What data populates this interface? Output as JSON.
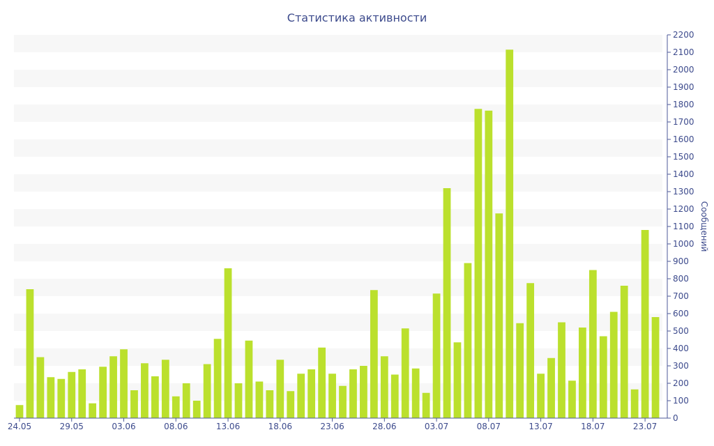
{
  "chart_data": {
    "type": "bar",
    "title": "Статистика активности",
    "xlabel": "",
    "ylabel": "Сообщений",
    "ylim": [
      0,
      2200
    ],
    "y_ticks": [
      0,
      100,
      200,
      300,
      400,
      500,
      600,
      700,
      800,
      900,
      1000,
      1100,
      1200,
      1300,
      1400,
      1500,
      1600,
      1700,
      1800,
      1900,
      2000,
      2100,
      2200
    ],
    "x_tick_labels": [
      "24.05",
      "29.05",
      "03.06",
      "08.06",
      "13.06",
      "18.06",
      "23.06",
      "28.06",
      "03.07",
      "08.07",
      "13.07",
      "18.07",
      "23.07"
    ],
    "x_tick_every": 5,
    "grid": "horizontal alternating bands",
    "bar_color": "#bbe02d",
    "band_color": "#f7f7f7",
    "text_color": "#3c4a8c",
    "axis_color": "#4d5a99",
    "values": [
      75,
      740,
      350,
      235,
      225,
      265,
      280,
      85,
      295,
      355,
      395,
      160,
      315,
      240,
      335,
      125,
      200,
      100,
      310,
      455,
      860,
      200,
      445,
      210,
      160,
      335,
      155,
      255,
      280,
      405,
      255,
      185,
      280,
      300,
      735,
      355,
      250,
      515,
      285,
      145,
      715,
      1320,
      435,
      890,
      1775,
      1765,
      1175,
      2115,
      545,
      775,
      255,
      345,
      550,
      215,
      520,
      850,
      470,
      610,
      760,
      165,
      1080,
      580
    ]
  }
}
